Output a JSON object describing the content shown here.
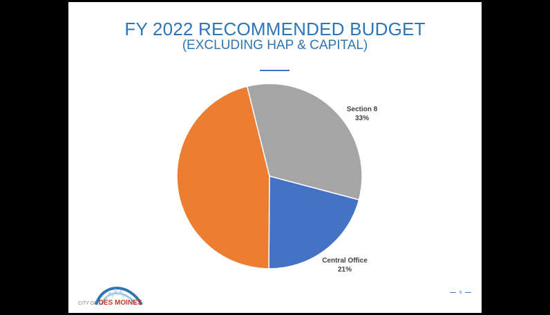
{
  "slide": {
    "title": "FY 2022 RECOMMENDED BUDGET",
    "subtitle": "(EXCLUDING HAP & CAPITAL)",
    "page_number": "6"
  },
  "logo": {
    "city_text": "CITY OF",
    "name_text": "DES MOINES"
  },
  "colors": {
    "title": "#2e75b6",
    "section8": "#a5a5a5",
    "central_office": "#4472c4",
    "unlabeled": "#ed7d31"
  },
  "chart_data": {
    "type": "pie",
    "title": "",
    "slices": [
      {
        "name": "Section 8",
        "value": 33,
        "label": "33%",
        "color": "#a5a5a5"
      },
      {
        "name": "Central Office",
        "value": 21,
        "label": "21%",
        "color": "#4472c4"
      },
      {
        "name": "",
        "value": 46,
        "label": "",
        "color": "#ed7d31"
      }
    ],
    "start_angle_deg": -14,
    "direction": "clockwise",
    "legend": "none"
  }
}
